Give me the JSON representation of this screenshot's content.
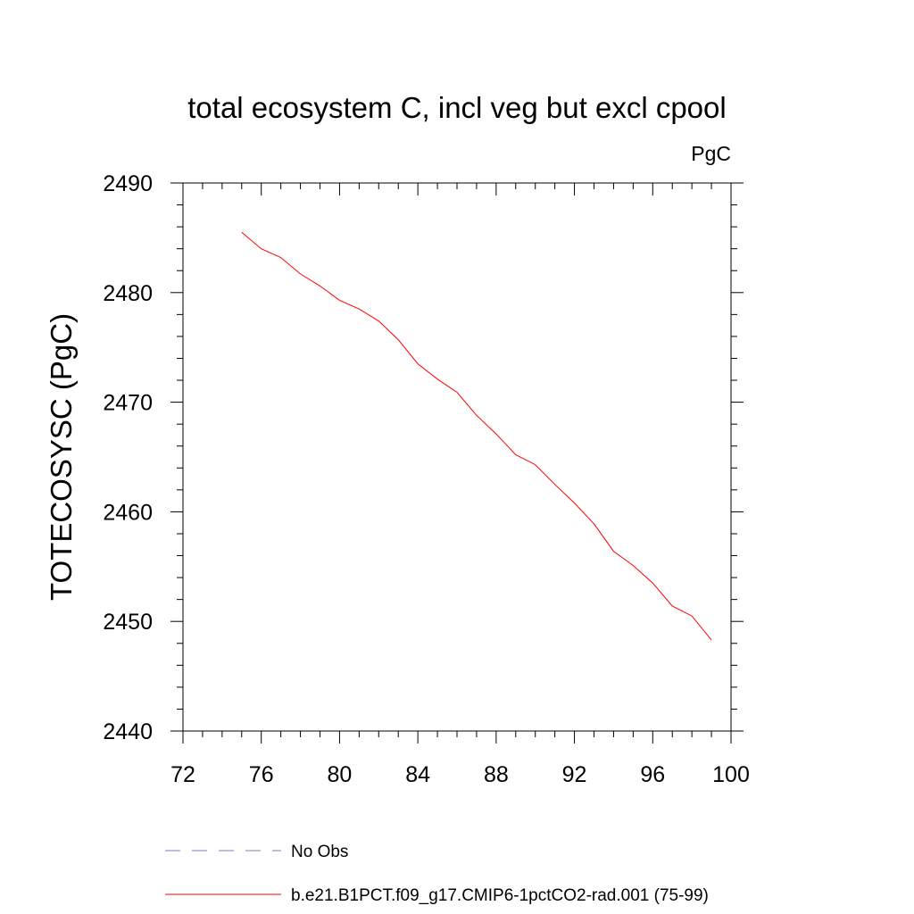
{
  "chart_data": {
    "type": "line",
    "title": "total ecosystem C, incl veg but excl cpool",
    "units_label": "PgC",
    "xlabel": "",
    "ylabel": "TOTECOSYSC  (PgC)",
    "xlim": [
      72,
      100
    ],
    "ylim": [
      2440,
      2490
    ],
    "xticks": [
      72,
      76,
      80,
      84,
      88,
      92,
      96,
      100
    ],
    "yticks": [
      2440,
      2450,
      2460,
      2470,
      2480,
      2490
    ],
    "grid": false,
    "legend_position": "bottom",
    "series": [
      {
        "name": "b.e21.B1PCT.f09_g17.CMIP6-1pctCO2-rad.001 (75-99)",
        "color": "#ff0000",
        "style": "solid",
        "x": [
          75,
          76,
          77,
          78,
          79,
          80,
          81,
          82,
          83,
          84,
          85,
          86,
          87,
          88,
          89,
          90,
          91,
          92,
          93,
          94,
          95,
          96,
          97,
          98,
          99
        ],
        "y": [
          2485.5,
          2484.0,
          2483.2,
          2481.7,
          2480.6,
          2479.3,
          2478.5,
          2477.4,
          2475.7,
          2473.5,
          2472.1,
          2470.9,
          2468.8,
          2467.1,
          2465.2,
          2464.3,
          2462.5,
          2460.8,
          2458.9,
          2456.4,
          2455.1,
          2453.5,
          2451.4,
          2450.5,
          2448.3
        ]
      }
    ],
    "legend": [
      {
        "label": "No Obs",
        "color": "#7b7bc0",
        "style": "dashed"
      },
      {
        "label": "b.e21.B1PCT.f09_g17.CMIP6-1pctCO2-rad.001 (75-99)",
        "color": "#ff0000",
        "style": "solid"
      }
    ]
  }
}
